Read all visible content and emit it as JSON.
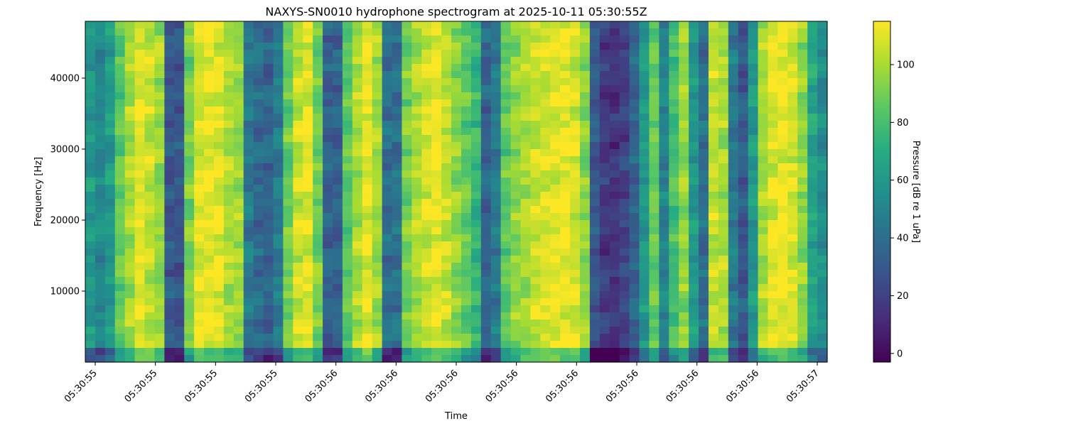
{
  "chart_data": {
    "type": "heatmap",
    "title": "NAXYS-SN0010 hydrophone spectrogram at 2025-10-11 05:30:55Z",
    "xlabel": "Time",
    "ylabel": "Frequency [Hz]",
    "x_tick_labels": [
      "05:30:55",
      "05:30:55",
      "05:30:55",
      "05:30:55",
      "05:30:56",
      "05:30:56",
      "05:30:56",
      "05:30:56",
      "05:30:56",
      "05:30:56",
      "05:30:56",
      "05:30:56",
      "05:30:57"
    ],
    "y_ticks": [
      10000,
      20000,
      30000,
      40000
    ],
    "y_tick_labels": [
      "10000",
      "20000",
      "30000",
      "40000"
    ],
    "ylim": [
      0,
      48000
    ],
    "colorbar": {
      "label": "Pressure [dB re 1 uPa]",
      "ticks": [
        0,
        20,
        40,
        60,
        80,
        100
      ],
      "tick_labels": [
        "0",
        "20",
        "40",
        "60",
        "80",
        "100"
      ],
      "range": [
        -3,
        115
      ],
      "colormap": "viridis"
    },
    "time_profile_db": [
      60,
      52,
      62,
      85,
      100,
      110,
      105,
      98,
      30,
      30,
      90,
      110,
      112,
      110,
      100,
      98,
      45,
      38,
      35,
      45,
      88,
      105,
      110,
      90,
      35,
      35,
      85,
      100,
      112,
      98,
      40,
      40,
      90,
      100,
      108,
      112,
      105,
      95,
      85,
      75,
      35,
      45,
      85,
      95,
      100,
      105,
      108,
      110,
      112,
      108,
      95,
      30,
      18,
      15,
      20,
      35,
      60,
      88,
      50,
      80,
      95,
      60,
      40,
      105,
      100,
      45,
      30,
      60,
      100,
      110,
      112,
      108,
      95,
      65,
      55
    ]
  }
}
